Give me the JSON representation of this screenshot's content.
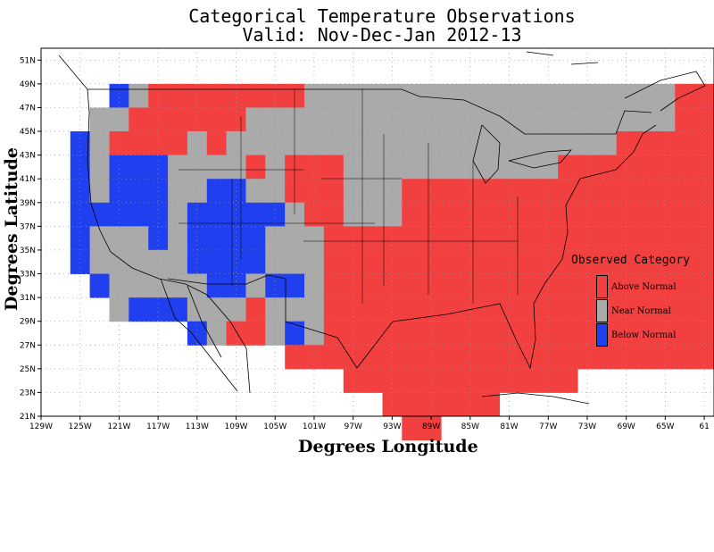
{
  "title_line1": "Categorical Temperature Observations",
  "title_line2": "Valid: Nov-Dec-Jan 2012-13",
  "y_axis_label": "Degrees Latitude",
  "x_axis_label": "Degrees Longitude",
  "legend": {
    "title": "Observed Category",
    "items": [
      {
        "label": "Above Normal",
        "color": "#f24040",
        "code": "A"
      },
      {
        "label": "Near Normal",
        "color": "#aaaaaa",
        "code": "N"
      },
      {
        "label": "Below Normal",
        "color": "#2040f0",
        "code": "B"
      }
    ]
  },
  "axes": {
    "lat_ticks": [
      "51N",
      "49N",
      "47N",
      "45N",
      "43N",
      "41N",
      "39N",
      "37N",
      "35N",
      "33N",
      "31N",
      "29N",
      "27N",
      "25N",
      "23N",
      "21N"
    ],
    "lat_values": [
      51,
      49,
      47,
      45,
      43,
      41,
      39,
      37,
      35,
      33,
      31,
      29,
      27,
      25,
      23,
      21
    ],
    "lon_ticks": [
      "129W",
      "125W",
      "121W",
      "117W",
      "113W",
      "109W",
      "105W",
      "101W",
      "97W",
      "93W",
      "89W",
      "85W",
      "81W",
      "77W",
      "73W",
      "69W",
      "65W",
      "61"
    ],
    "lon_values": [
      -129,
      -125,
      -121,
      -117,
      -113,
      -109,
      -105,
      -101,
      -97,
      -93,
      -89,
      -85,
      -81,
      -77,
      -73,
      -69,
      -65,
      -61
    ],
    "lon_range": [
      -129,
      -60
    ],
    "lat_range": [
      21,
      52
    ],
    "grid": true
  },
  "grid_data": {
    "cell_deg": 2,
    "lon_start": -125,
    "lat_top": 49,
    "rows": [
      "..BNAAAAAAAANNNNNNNNNNNNNNNNNNNAAAAAAA..........",
      ".NNAAAAAANNNNNNNNNNNNNNNNNNNNNNAAAAAAAA.......NN",
      "BNAAAANANNNNNNNNNNNNNNNNNNNNAAAAAAAAAAAA.....NNB",
      "BNBBBNNNNANAAANNNNNNNNNNNAAAAAAAAAAAAAAAAAAAANNBB",
      "BNBBBNNBBNNAAANNNAAAAAAAAAAAAAAAAAAAAAAAAAAANNB..",
      "BBBBBNBBBBBNAANNNAAAAAAAAAAAAAAAAAAAAAAAAAANNN...",
      "BNNNBNBBBBNNNAAAAAAAAAAAAAAAAAAAAAAAAAAAAAAN.....",
      "BNNNNNBBBBNNNAAAAAAAAAAAAAAAAAAAAAAAAAAAAANN.....",
      ".BNNNNNBBNBBNAAAAAAAAAAAAAAAAAAAAAAAAAAAAAN......",
      "..NBBBNNNANNNAAAAAAAAAAAAAAAAAAAAAAAAAAAAN.......",
      "......BNAANBNAAAAAAAAAAAAAAAAAAAAAAAAAAA.........",
      "...........AAAAAAAAAAAAAAAAAAAAAAAAAAAAA.........",
      "..............AAAAAAAAAAAA.........NAAA.........",
      "................AAAAAA.............NNAA.........",
      ".................AA.................NA.........."
    ]
  }
}
